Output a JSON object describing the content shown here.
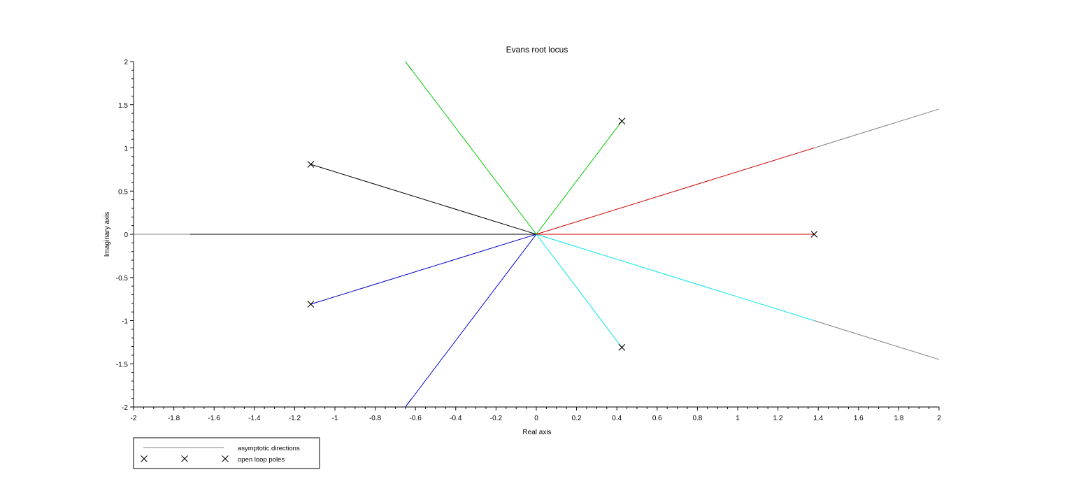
{
  "chart_data": {
    "type": "line",
    "title": "Evans root locus",
    "xlabel": "Real axis",
    "ylabel": "Imaginary axis",
    "xlim": [
      -2,
      2
    ],
    "ylim": [
      -2,
      2
    ],
    "x_ticks": [
      "-2",
      "-1.8",
      "-1.6",
      "-1.4",
      "-1.2",
      "-1",
      "-0.8",
      "-0.6",
      "-0.4",
      "-0.2",
      "0",
      "0.2",
      "0.4",
      "0.6",
      "0.8",
      "1",
      "1.2",
      "1.4",
      "1.6",
      "1.8",
      "2"
    ],
    "y_ticks": [
      "-2",
      "-1.5",
      "-1",
      "-0.5",
      "0",
      "0.5",
      "1",
      "1.5",
      "2"
    ],
    "grid": false,
    "legend_position": "bottom-left",
    "series": [
      {
        "color": "#000000",
        "points": [
          [
            -1.12,
            0.81
          ],
          [
            0,
            0
          ]
        ]
      },
      {
        "color": "#000000",
        "points": [
          [
            -1.72,
            0
          ],
          [
            0,
            0
          ]
        ]
      },
      {
        "color": "#0000cc",
        "points": [
          [
            -1.12,
            -0.81
          ],
          [
            0,
            0
          ],
          [
            -0.65,
            -2.0
          ]
        ]
      },
      {
        "color": "#00cc00",
        "points": [
          [
            0.425,
            1.31
          ],
          [
            0,
            0
          ],
          [
            -0.65,
            2.0
          ]
        ]
      },
      {
        "color": "#00e6e6",
        "points": [
          [
            0.425,
            -1.31
          ],
          [
            0,
            0
          ],
          [
            1.38,
            -1.0
          ]
        ]
      },
      {
        "color": "#cc0000",
        "points": [
          [
            1.38,
            0
          ],
          [
            0,
            0
          ],
          [
            1.38,
            1.0
          ]
        ]
      }
    ],
    "asymptotes": {
      "name": "asymptotic directions",
      "color": "#808080",
      "segments": [
        [
          [
            -2.0,
            0
          ],
          [
            -1.72,
            0
          ]
        ],
        [
          [
            1.38,
            1.0
          ],
          [
            2.0,
            1.45
          ]
        ],
        [
          [
            1.38,
            -1.0
          ],
          [
            2.0,
            -1.45
          ]
        ],
        [
          [
            -0.65,
            2.0
          ],
          [
            -0.62,
            1.9
          ]
        ],
        [
          [
            -0.65,
            -2.0
          ],
          [
            -0.62,
            -1.9
          ]
        ]
      ]
    },
    "poles": {
      "name": "open loop poles",
      "points": [
        [
          -1.12,
          0.81
        ],
        [
          -1.12,
          -0.81
        ],
        [
          0.425,
          1.31
        ],
        [
          0.425,
          -1.31
        ],
        [
          1.38,
          0
        ]
      ]
    }
  }
}
